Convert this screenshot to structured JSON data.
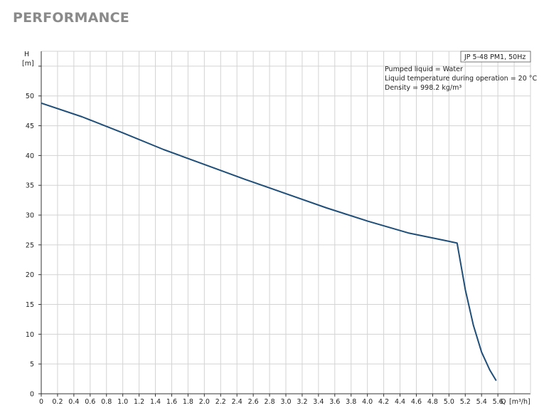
{
  "page": {
    "title": "PERFORMANCE"
  },
  "chart_data": {
    "type": "line",
    "title": "",
    "y_axis": {
      "label": "H",
      "unit": "[m]",
      "range": [
        0,
        57.5
      ],
      "ticks": [
        0,
        5,
        10,
        15,
        20,
        25,
        30,
        35,
        40,
        45,
        50
      ]
    },
    "x_axis": {
      "label": "Q",
      "unit": "[m³/h]",
      "range": [
        0,
        6.0
      ],
      "ticks": [
        "0",
        "0.2",
        "0.4",
        "0.6",
        "0.8",
        "1.0",
        "1.2",
        "1.4",
        "1.6",
        "1.8",
        "2.0",
        "2.2",
        "2.4",
        "2.6",
        "2.8",
        "3.0",
        "3.2",
        "3.4",
        "3.6",
        "3.8",
        "4.0",
        "4.2",
        "4.4",
        "4.6",
        "4.8",
        "5.0",
        "5.2",
        "5.4",
        "5.6"
      ]
    },
    "grid": true,
    "legend_box": "JP 5-48 PM1, 50Hz",
    "notes": [
      "Pumped liquid = Water",
      "Liquid temperature during operation = 20 °C",
      "Density = 998.2 kg/m³"
    ],
    "series": [
      {
        "color": "#1f4e79",
        "x": [
          0,
          0.5,
          1.0,
          1.5,
          2.0,
          2.5,
          3.0,
          3.5,
          4.0,
          4.5,
          5.0,
          5.1,
          5.2,
          5.3,
          5.4,
          5.5,
          5.58
        ],
        "y": [
          48.8,
          46.5,
          43.8,
          41.0,
          38.5,
          36.0,
          33.6,
          31.2,
          29.0,
          27.0,
          25.6,
          25.3,
          17.5,
          11.5,
          7.0,
          4.0,
          2.2
        ]
      }
    ]
  }
}
